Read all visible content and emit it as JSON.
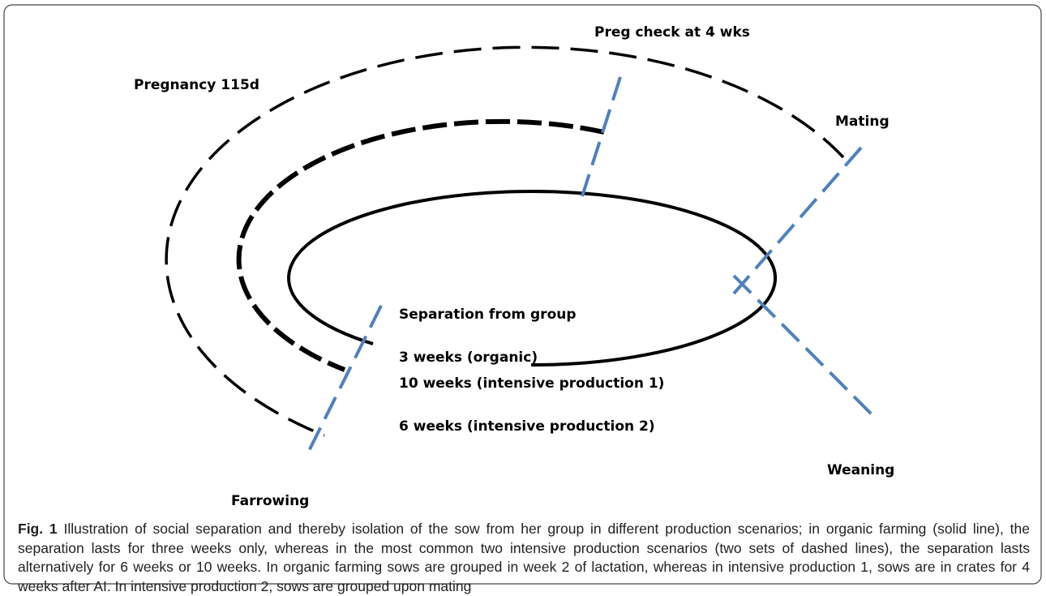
{
  "labels": {
    "preg_check": "Preg check at 4 wks",
    "pregnancy": "Pregnancy 115d",
    "mating": "Mating",
    "separation": "Separation from group",
    "organic": "3 weeks (organic)",
    "intensive1": "10 weeks (intensive production 1)",
    "intensive2": "6 weeks (intensive production 2)",
    "weaning": "Weaning",
    "farrowing": "Farrowing"
  },
  "caption": {
    "label": "Fig. 1",
    "text": " Illustration of social separation and thereby isolation of the sow from her group in different production scenarios; in organic farming (solid line), the separation lasts for three weeks only, whereas in the most common two intensive production scenarios (two sets of dashed lines), the separation lasts alternatively for 6 weeks or 10 weeks. In organic farming sows are grouped in week 2 of lactation, whereas in intensive production 1, sows are in crates for 4 weeks after AI. In intensive production 2, sows are grouped upon mating"
  }
}
